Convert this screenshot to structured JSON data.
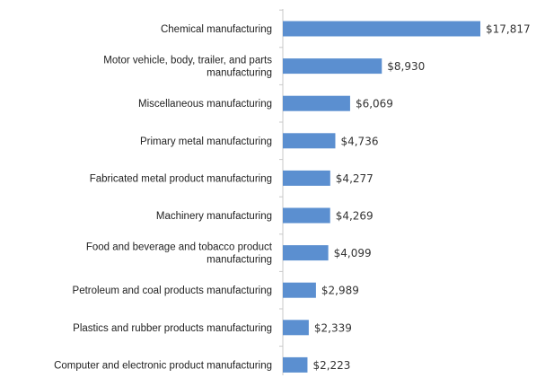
{
  "chart_data": {
    "type": "bar",
    "orientation": "horizontal",
    "title": "",
    "xlabel": "",
    "ylabel": "",
    "value_prefix": "$",
    "xlim": [
      0,
      17817
    ],
    "grid": false,
    "legend": "none",
    "bar_color": "#5b8fd0",
    "categories": [
      [
        "Chemical manufacturing"
      ],
      [
        "Motor vehicle, body, trailer, and parts",
        "manufacturing"
      ],
      [
        "Miscellaneous manufacturing"
      ],
      [
        "Primary metal manufacturing"
      ],
      [
        "Fabricated metal product manufacturing"
      ],
      [
        "Machinery manufacturing"
      ],
      [
        "Food and beverage and tobacco product",
        "manufacturing"
      ],
      [
        "Petroleum and coal products manufacturing"
      ],
      [
        "Plastics and rubber products manufacturing"
      ],
      [
        "Computer and electronic product manufacturing"
      ]
    ],
    "values": [
      17817,
      8930,
      6069,
      4736,
      4277,
      4269,
      4099,
      2989,
      2339,
      2223
    ],
    "value_labels": [
      "$17,817",
      "$8,930",
      "$6,069",
      "$4,736",
      "$4,277",
      "$4,269",
      "$4,099",
      "$2,989",
      "$2,339",
      "$2,223"
    ]
  }
}
